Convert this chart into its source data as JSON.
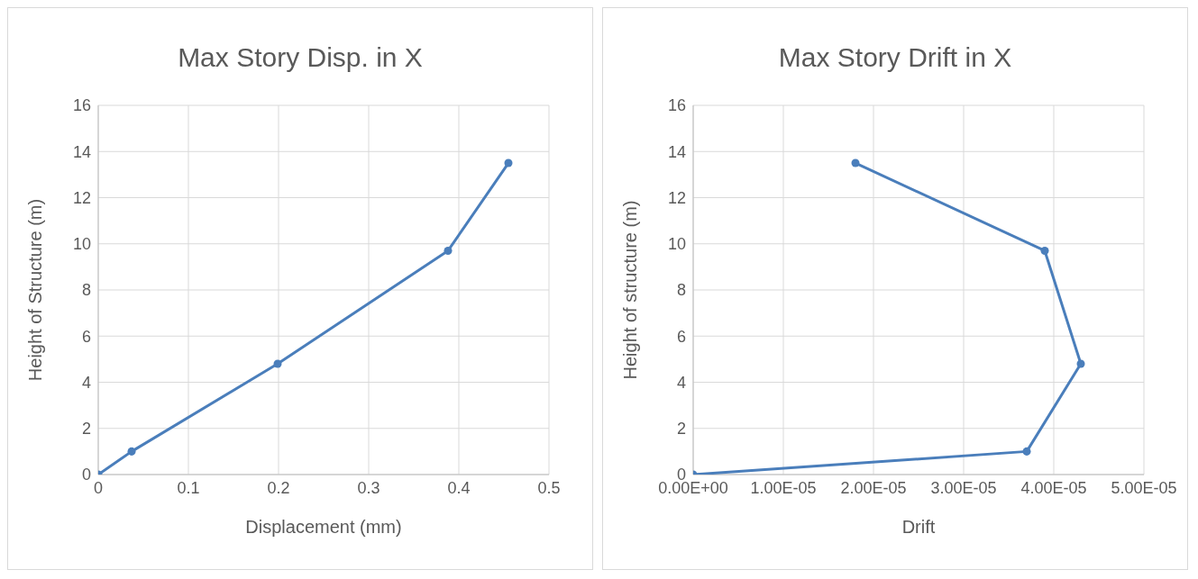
{
  "chart_data": [
    {
      "type": "line",
      "title": "Max Story Disp. in X",
      "xlabel": "Displacement (mm)",
      "ylabel": "Height of Structure (m)",
      "x": [
        0,
        0.037,
        0.199,
        0.388,
        0.455
      ],
      "series": [
        {
          "color": "#4a7ebb",
          "values": [
            0,
            1,
            4.8,
            9.7,
            13.5
          ]
        }
      ],
      "xlim": [
        0,
        0.5
      ],
      "xticks": [
        0,
        0.1,
        0.2,
        0.3,
        0.4,
        0.5
      ],
      "ylim": [
        0,
        16
      ],
      "yticks": [
        0,
        2,
        4,
        6,
        8,
        10,
        12,
        14,
        16
      ],
      "grid": true,
      "legend": false,
      "marker": "circle",
      "line_style": "solid"
    },
    {
      "type": "line",
      "title": "Max Story Drift in X",
      "xlabel": "Drift",
      "ylabel": "Height of structure (m)",
      "x": [
        0,
        3.7e-05,
        4.3e-05,
        3.9e-05,
        1.8e-05
      ],
      "series": [
        {
          "color": "#4a7ebb",
          "values": [
            0,
            1,
            4.8,
            9.7,
            13.5
          ]
        }
      ],
      "xlim": [
        0,
        5e-05
      ],
      "xticks": [
        {
          "value": 0,
          "label": "0.00E+00"
        },
        {
          "value": 1e-05,
          "label": "1.00E-05"
        },
        {
          "value": 2e-05,
          "label": "2.00E-05"
        },
        {
          "value": 3e-05,
          "label": "3.00E-05"
        },
        {
          "value": 4e-05,
          "label": "4.00E-05"
        },
        {
          "value": 5e-05,
          "label": "5.00E-05"
        }
      ],
      "ylim": [
        0,
        16
      ],
      "yticks": [
        0,
        2,
        4,
        6,
        8,
        10,
        12,
        14,
        16
      ],
      "grid": true,
      "legend": false,
      "marker": "circle",
      "line_style": "solid"
    }
  ]
}
